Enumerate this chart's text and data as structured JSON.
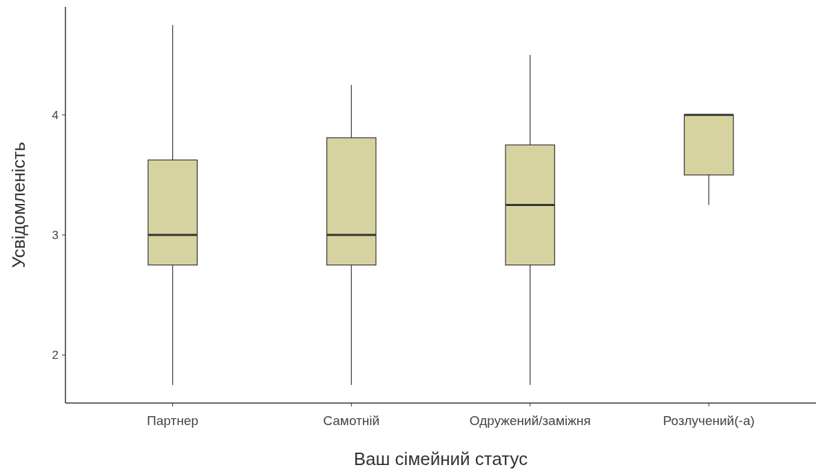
{
  "chart_data": {
    "type": "box",
    "xlabel": "Ваш сімейний статус",
    "ylabel": "Усвідомленість",
    "categories": [
      "Партнер",
      "Самотній",
      "Одружений/заміжня",
      "Розлучений(-а)"
    ],
    "color": "#d6d3a0",
    "boxes": [
      {
        "low": 1.75,
        "q1": 2.75,
        "median": 3,
        "q3": 3.625,
        "high": 4.75
      },
      {
        "low": 1.75,
        "q1": 2.75,
        "median": 3,
        "q3": 3.81,
        "high": 4.25
      },
      {
        "low": 1.75,
        "q1": 2.75,
        "median": 3.25,
        "q3": 3.75,
        "high": 4.5
      },
      {
        "low": 3.25,
        "q1": 3.5,
        "median": 4,
        "q3": 4,
        "high": 4
      }
    ],
    "ylim": [
      1.6,
      4.9
    ],
    "yticks": [
      2,
      3,
      4
    ],
    "grid": false
  }
}
